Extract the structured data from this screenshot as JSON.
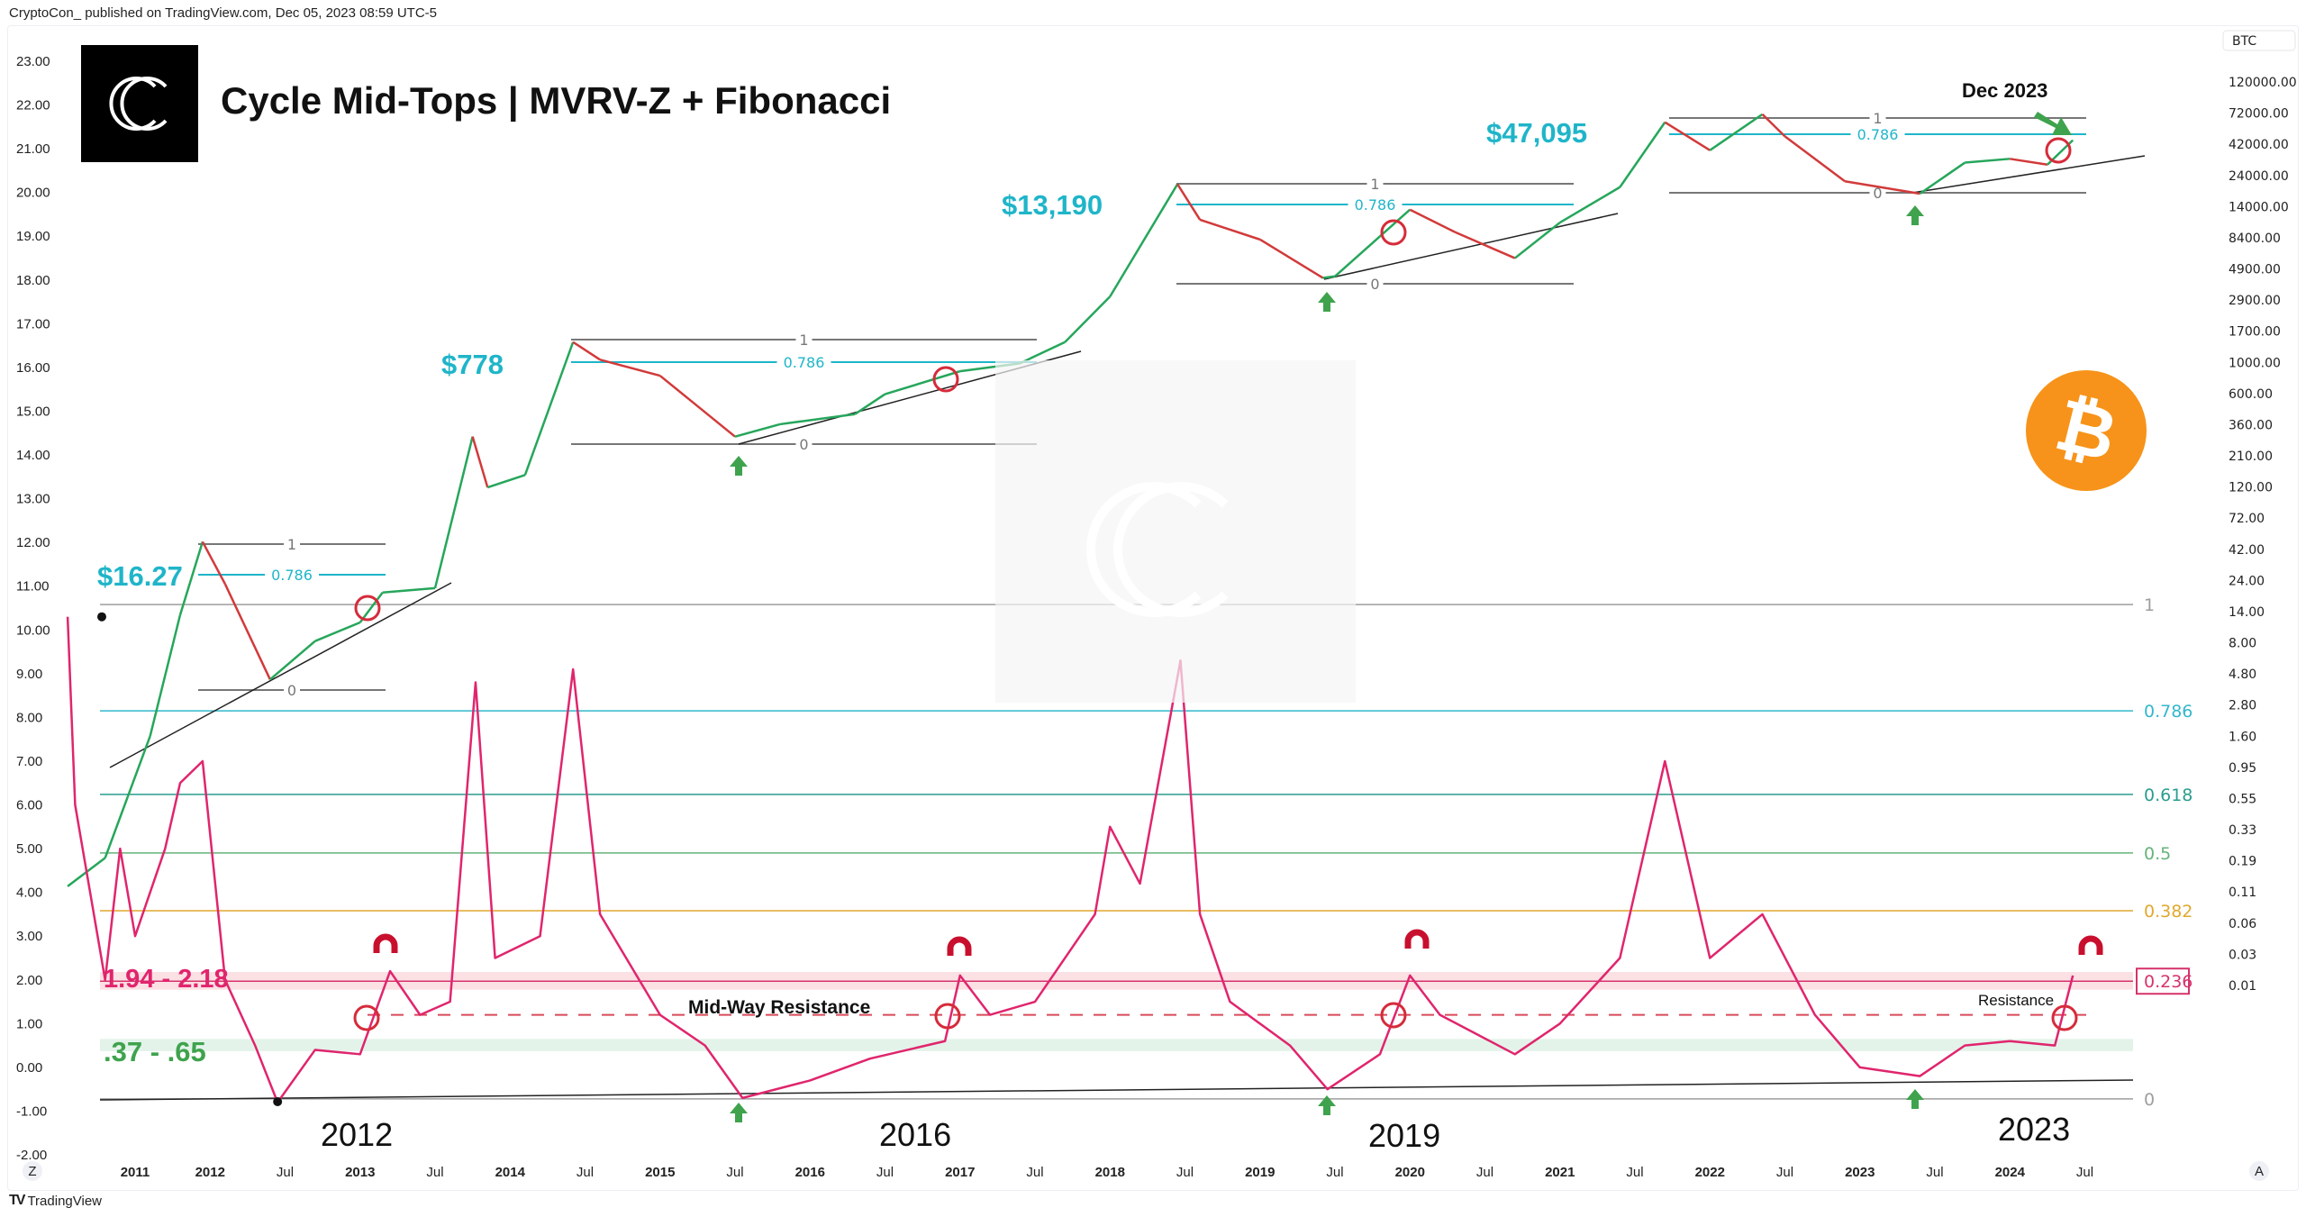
{
  "header": {
    "published": "CryptoCon_ published on TradingView.com, Dec 05, 2023 08:59 UTC-5"
  },
  "footer": {
    "brand": "TradingView"
  },
  "colors": {
    "accent": "#1fb5c9",
    "mvrv": "#e0256d",
    "up": "#26a65b",
    "down": "#d23a3a",
    "bitcoin": "#f7931a",
    "pink_band": "#fbe0e4",
    "green_band": "#e3f3ea"
  },
  "chart_data": {
    "type": "line",
    "title": "Cycle Mid-Tops | MVRV-Z + Fibonacci",
    "left_axis": {
      "ticks": [
        "23.00",
        "22.00",
        "21.00",
        "20.00",
        "19.00",
        "18.00",
        "17.00",
        "16.00",
        "15.00",
        "14.00",
        "13.00",
        "12.00",
        "11.00",
        "10.00",
        "9.00",
        "8.00",
        "7.00",
        "6.00",
        "5.00",
        "4.00",
        "3.00",
        "2.00",
        "1.00",
        "0.00",
        "-1.00",
        "-2.00"
      ],
      "range": [
        -2,
        23
      ]
    },
    "right_axis": {
      "symbol": "BTC",
      "scale": "log",
      "ticks": [
        "120000.00",
        "72000.00",
        "42000.00",
        "24000.00",
        "14000.00",
        "8400.00",
        "4900.00",
        "2900.00",
        "1700.00",
        "1000.00",
        "600.00",
        "360.00",
        "210.00",
        "120.00",
        "72.00",
        "42.00",
        "24.00",
        "14.00",
        "8.00",
        "4.80",
        "2.80",
        "1.60",
        "0.95",
        "0.55",
        "0.33",
        "0.19",
        "0.11",
        "0.06",
        "0.03",
        "0.01"
      ]
    },
    "x_axis": {
      "ticks": [
        "2011",
        "2012",
        "Jul",
        "2013",
        "Jul",
        "2014",
        "Jul",
        "2015",
        "Jul",
        "2016",
        "Jul",
        "2017",
        "Jul",
        "2018",
        "Jul",
        "2019",
        "Jul",
        "2020",
        "Jul",
        "2021",
        "Jul",
        "2022",
        "Jul",
        "2023",
        "Jul",
        "2024",
        "Jul"
      ],
      "range": [
        2011,
        2024.5
      ],
      "left_button": "Z",
      "right_button": "A"
    },
    "series": [
      {
        "name": "BTC",
        "axis": "right",
        "x": [
          2010.55,
          2010.8,
          2010.95,
          2011.1,
          2011.3,
          2011.45,
          2011.6,
          2011.9,
          2012.2,
          2012.5,
          2012.65,
          2013.0,
          2013.25,
          2013.35,
          2013.6,
          2013.92,
          2014.1,
          2014.5,
          2015.0,
          2015.3,
          2015.8,
          2016.0,
          2016.5,
          2016.9,
          2017.2,
          2017.5,
          2017.95,
          2018.1,
          2018.5,
          2018.92,
          2019.0,
          2019.5,
          2019.8,
          2020.2,
          2020.5,
          2020.9,
          2021.2,
          2021.5,
          2021.85,
          2022.0,
          2022.4,
          2022.9,
          2023.2,
          2023.5,
          2023.75,
          2023.92
        ],
        "values": [
          0.06,
          0.1,
          0.3,
          0.9,
          8,
          30,
          14,
          2.5,
          5,
          7,
          12,
          13,
          200,
          80,
          100,
          1100,
          800,
          600,
          200,
          250,
          300,
          430,
          650,
          750,
          1100,
          2500,
          19000,
          10000,
          7000,
          3500,
          3600,
          12000,
          8000,
          5000,
          9500,
          18000,
          58000,
          35000,
          67000,
          45000,
          20000,
          16000,
          28000,
          30000,
          27000,
          42000
        ]
      },
      {
        "name": "MVRV-Z",
        "axis": "left",
        "x": [
          2010.55,
          2010.6,
          2010.8,
          2010.9,
          2011.0,
          2011.2,
          2011.3,
          2011.45,
          2011.6,
          2011.8,
          2011.95,
          2012.2,
          2012.5,
          2012.7,
          2012.9,
          2013.1,
          2013.27,
          2013.4,
          2013.7,
          2013.92,
          2014.1,
          2014.5,
          2014.8,
          2015.05,
          2015.5,
          2015.9,
          2016.4,
          2016.5,
          2016.7,
          2017.0,
          2017.4,
          2017.5,
          2017.7,
          2017.97,
          2018.1,
          2018.3,
          2018.7,
          2018.95,
          2019.3,
          2019.5,
          2019.7,
          2020.2,
          2020.5,
          2020.9,
          2021.1,
          2021.2,
          2021.5,
          2021.85,
          2022.2,
          2022.5,
          2022.9,
          2023.2,
          2023.5,
          2023.8,
          2023.92
        ],
        "values": [
          10.3,
          6,
          2,
          5,
          3,
          5,
          6.5,
          7,
          2,
          0.5,
          -0.8,
          0.4,
          0.3,
          2.2,
          1.2,
          1.5,
          8.8,
          2.5,
          3.0,
          9.1,
          3.5,
          1.2,
          0.5,
          -0.7,
          -0.3,
          0.2,
          0.6,
          2.1,
          1.2,
          1.5,
          3.5,
          5.5,
          4.2,
          9.3,
          3.5,
          1.5,
          0.5,
          -0.5,
          0.3,
          2.1,
          1.2,
          0.3,
          1.0,
          2.5,
          5.5,
          7.0,
          2.5,
          3.5,
          1.2,
          0.0,
          -0.2,
          0.5,
          0.6,
          0.5,
          2.1
        ]
      }
    ],
    "fib_levels": [
      {
        "label": "1",
        "z": 10.58,
        "color": "#9e9e9e"
      },
      {
        "label": "0.786",
        "z": 8.15,
        "color": "#33b8cc"
      },
      {
        "label": "0.618",
        "z": 6.24,
        "color": "#2a9d8f"
      },
      {
        "label": "0.5",
        "z": 4.9,
        "color": "#66b27a"
      },
      {
        "label": "0.382",
        "z": 3.58,
        "color": "#e0a92e"
      },
      {
        "label": "0.236",
        "z": 1.97,
        "color": "#d6336c",
        "boxed": true
      },
      {
        "label": "0",
        "z": -0.72,
        "color": "#9e9e9e"
      }
    ],
    "price_fibs": [
      {
        "top_label": "$16.27",
        "levels": [
          "1",
          "0.786",
          "0"
        ]
      },
      {
        "top_label": "$778",
        "levels": [
          "1",
          "0.786",
          "0"
        ]
      },
      {
        "top_label": "$13,190",
        "levels": [
          "1",
          "0.786",
          "0"
        ]
      },
      {
        "top_label": "$47,095",
        "levels": [
          "1",
          "0.786",
          "0"
        ]
      }
    ],
    "annotations": {
      "pink_zone": "1.94 - 2.18",
      "green_zone": ".37 - .65",
      "mid_way": "Mid-Way Resistance",
      "resistance": "Resistance",
      "dec": "Dec 2023",
      "cycle_years": [
        "2012",
        "2016",
        "2019",
        "2023"
      ]
    }
  }
}
